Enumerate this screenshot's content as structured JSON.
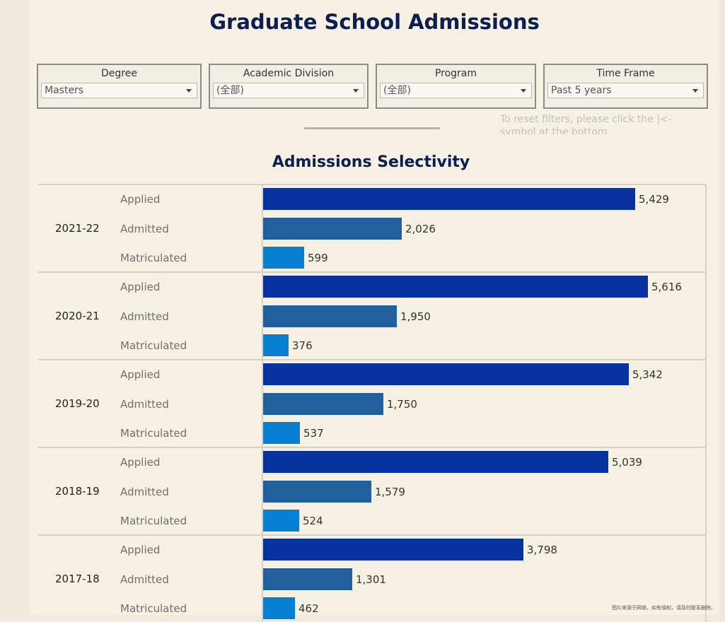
{
  "title": "Graduate School Admissions",
  "filters": [
    {
      "label": "Degree",
      "value": "Masters"
    },
    {
      "label": "Academic Division",
      "value": "(全部)"
    },
    {
      "label": "Program",
      "value": "(全部)"
    },
    {
      "label": "Time Frame",
      "value": "Past 5 years"
    }
  ],
  "reset_note": "To reset filters, please click the |<- symbol at the bottom",
  "watermark": "图片来源于网络，如有侵权，请及时联系删除。",
  "colors": {
    "applied": "#0832a0",
    "admitted": "#21609b",
    "matriculated": "#0880d1",
    "title": "#0d1f52"
  },
  "chart_data": {
    "type": "bar",
    "title": "Admissions Selectivity",
    "orientation": "horizontal",
    "measures": [
      "Applied",
      "Admitted",
      "Matriculated"
    ],
    "groups": [
      {
        "year": "2021-22",
        "values": [
          5429,
          2026,
          599
        ],
        "labels": [
          "5,429",
          "2,026",
          "599"
        ]
      },
      {
        "year": "2020-21",
        "values": [
          5616,
          1950,
          376
        ],
        "labels": [
          "5,616",
          "1,950",
          "376"
        ]
      },
      {
        "year": "2019-20",
        "values": [
          5342,
          1750,
          537
        ],
        "labels": [
          "5,342",
          "1,750",
          "537"
        ]
      },
      {
        "year": "2018-19",
        "values": [
          5039,
          1579,
          524
        ],
        "labels": [
          "5,039",
          "1,579",
          "524"
        ]
      },
      {
        "year": "2017-18",
        "values": [
          3798,
          1301,
          462
        ],
        "labels": [
          "3,798",
          "1,301",
          "462"
        ]
      }
    ],
    "xlim": [
      0,
      5616
    ],
    "grid": false,
    "legend": "none"
  }
}
